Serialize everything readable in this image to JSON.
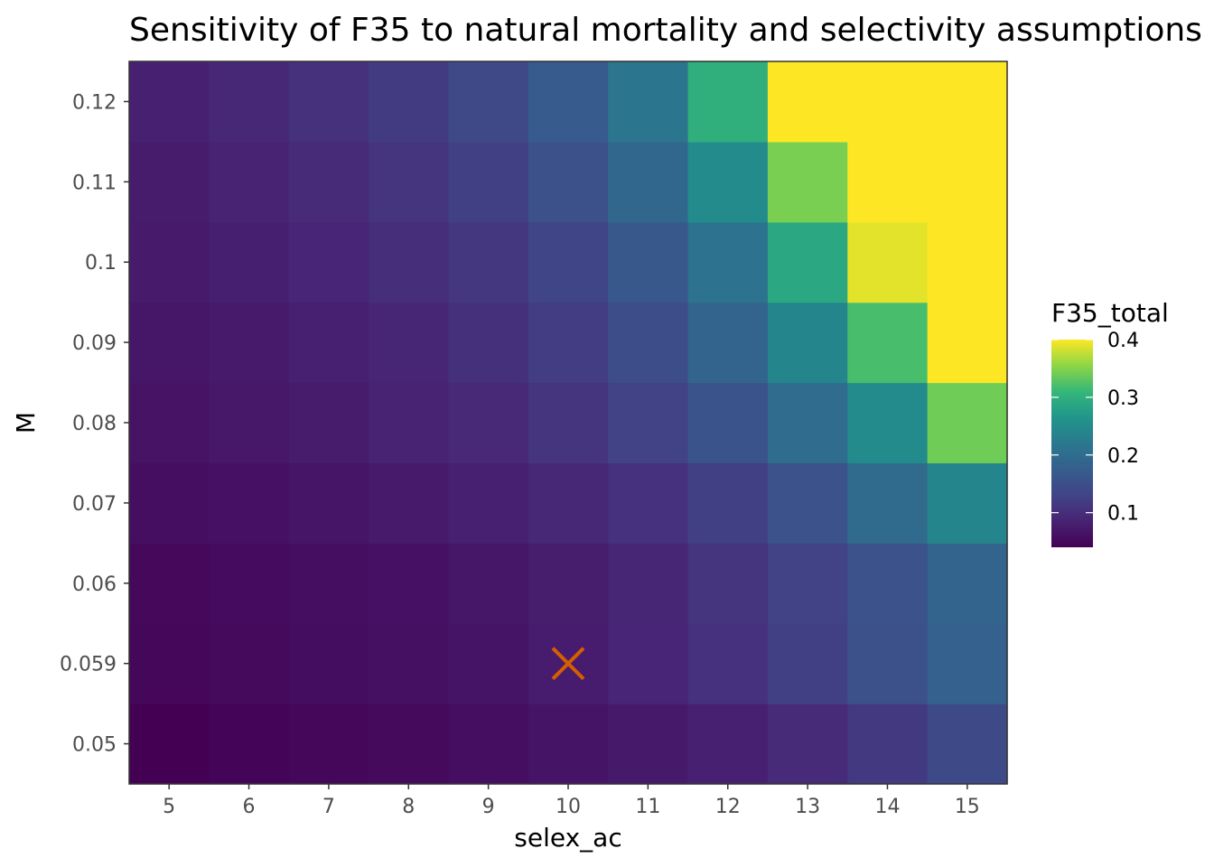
{
  "chart_data": {
    "type": "heatmap",
    "title": "Sensitivity of F35 to natural mortality and selectivity assumptions",
    "xlabel": "selex_ac",
    "ylabel": "M",
    "x_categories": [
      "5",
      "6",
      "7",
      "8",
      "9",
      "10",
      "11",
      "12",
      "13",
      "14",
      "15"
    ],
    "y_categories": [
      "0.05",
      "0.059",
      "0.06",
      "0.07",
      "0.08",
      "0.09",
      "0.1",
      "0.11",
      "0.12"
    ],
    "values": [
      [
        0.04,
        0.045,
        0.048,
        0.052,
        0.058,
        0.065,
        0.072,
        0.082,
        0.095,
        0.115,
        0.14
      ],
      [
        0.048,
        0.052,
        0.056,
        0.06,
        0.066,
        0.075,
        0.088,
        0.105,
        0.125,
        0.15,
        0.18
      ],
      [
        0.05,
        0.054,
        0.058,
        0.062,
        0.068,
        0.077,
        0.09,
        0.108,
        0.128,
        0.155,
        0.185
      ],
      [
        0.058,
        0.062,
        0.067,
        0.074,
        0.082,
        0.092,
        0.105,
        0.125,
        0.155,
        0.195,
        0.24
      ],
      [
        0.064,
        0.07,
        0.076,
        0.084,
        0.094,
        0.108,
        0.128,
        0.158,
        0.2,
        0.25,
        0.34
      ],
      [
        0.068,
        0.074,
        0.081,
        0.09,
        0.103,
        0.12,
        0.145,
        0.185,
        0.24,
        0.32,
        0.42
      ],
      [
        0.073,
        0.08,
        0.088,
        0.1,
        0.113,
        0.132,
        0.165,
        0.21,
        0.29,
        0.39,
        0.42
      ],
      [
        0.076,
        0.085,
        0.095,
        0.108,
        0.125,
        0.15,
        0.19,
        0.25,
        0.345,
        0.42,
        0.42
      ],
      [
        0.082,
        0.092,
        0.104,
        0.118,
        0.138,
        0.17,
        0.215,
        0.3,
        0.42,
        0.42,
        0.42
      ]
    ],
    "color_scale": "viridis",
    "color_range": [
      0.04,
      0.4
    ],
    "legend": {
      "title": "F35_total",
      "ticks": [
        0.1,
        0.2,
        0.3,
        0.4
      ],
      "tick_labels": [
        "0.1",
        "0.2",
        "0.3",
        "0.4"
      ],
      "position": "right"
    },
    "marker": {
      "symbol": "×",
      "x": "10",
      "y": "0.059",
      "color": "#D55E00"
    },
    "panel_border_color": "#333333",
    "grid": false
  }
}
